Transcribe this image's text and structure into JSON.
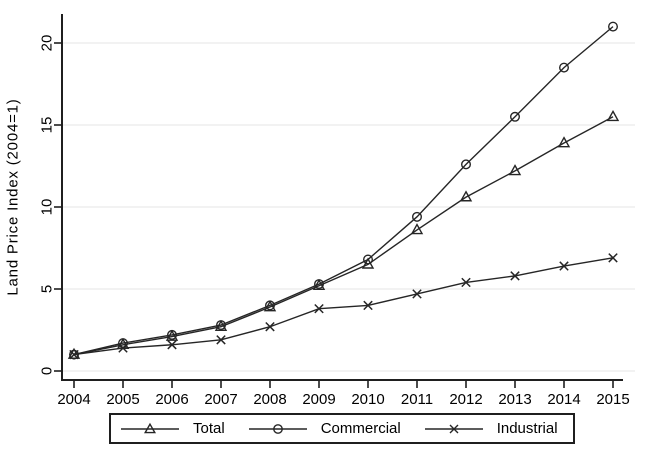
{
  "figure": {
    "background": "#ffffff"
  },
  "colors": {
    "line": "#262626",
    "axis": "#1f1f1f",
    "grid": "#ebebeb",
    "text": "#000000"
  },
  "chart_data": {
    "type": "line",
    "title": "",
    "xlabel": "",
    "ylabel": "Land Price Index (2004=1)",
    "x": [
      2004,
      2005,
      2006,
      2007,
      2008,
      2009,
      2010,
      2011,
      2012,
      2013,
      2014,
      2015
    ],
    "y_ticks": [
      0,
      5,
      10,
      15,
      20
    ],
    "ylim": [
      0,
      21.8
    ],
    "grid": "horizontal-only",
    "legend_position": "bottom-center",
    "series": [
      {
        "name": "Total",
        "marker": "triangle",
        "values": [
          1.0,
          1.6,
          2.1,
          2.7,
          3.9,
          5.2,
          6.5,
          8.6,
          10.6,
          12.2,
          13.9,
          15.5
        ]
      },
      {
        "name": "Commercial",
        "marker": "circle",
        "values": [
          1.0,
          1.7,
          2.2,
          2.8,
          4.0,
          5.3,
          6.8,
          9.4,
          12.6,
          15.5,
          18.5,
          21.0
        ]
      },
      {
        "name": "Industrial",
        "marker": "x",
        "values": [
          1.0,
          1.4,
          1.6,
          1.9,
          2.7,
          3.8,
          4.0,
          4.7,
          5.4,
          5.8,
          6.4,
          6.9
        ]
      }
    ]
  }
}
